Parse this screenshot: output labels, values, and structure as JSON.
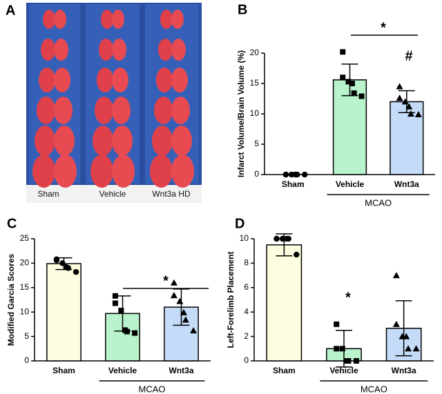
{
  "panel_a": {
    "letter": "A",
    "labels": [
      "Sham",
      "Vehicle",
      "Wnt3a HD"
    ]
  },
  "chart_data": [
    {
      "type": "bar",
      "letter": "B",
      "ylabel": "Infarct Volume/Brain Volume (%)",
      "categories": [
        "Sham",
        "Vehicle",
        "Wnt3a"
      ],
      "values": [
        0,
        15.6,
        12.0
      ],
      "errors": [
        0,
        2.6,
        1.8
      ],
      "points": [
        [
          0,
          0,
          0,
          0,
          0,
          0
        ],
        [
          20.2,
          16.0,
          15.3,
          15.0,
          13.4,
          12.9
        ],
        [
          14.5,
          12.6,
          12.0,
          11.2,
          10.0,
          9.9
        ]
      ],
      "colors": [
        "#fdfde0",
        "#b9f3cc",
        "#c4dcf7"
      ],
      "markers": [
        "circle",
        "square",
        "triangle"
      ],
      "ylim": [
        0,
        20
      ],
      "yticks": [
        0,
        5,
        10,
        15,
        20
      ],
      "annotations": [
        "*",
        "#"
      ],
      "group_label": "MCAO"
    },
    {
      "type": "bar",
      "letter": "C",
      "ylabel": "Modified Garcia Scores",
      "categories": [
        "Sham",
        "Vehicle",
        "Wnt3a"
      ],
      "values": [
        19.9,
        9.7,
        11.0
      ],
      "errors": [
        1.2,
        3.6,
        3.7
      ],
      "points": [
        [
          20.8,
          20.6,
          20.0,
          19.2,
          19.0,
          18.2
        ],
        [
          13.3,
          11.8,
          10.3,
          6.3,
          6.0,
          5.7
        ],
        [
          16.0,
          13.4,
          12.2,
          9.9,
          8.4,
          6.2
        ]
      ],
      "colors": [
        "#fdfde0",
        "#b9f3cc",
        "#c4dcf7"
      ],
      "markers": [
        "circle",
        "square",
        "triangle"
      ],
      "ylim": [
        0,
        25
      ],
      "yticks": [
        0,
        5,
        10,
        15,
        20,
        25
      ],
      "annotations": [
        "*"
      ],
      "group_label": "MCAO"
    },
    {
      "type": "bar",
      "letter": "D",
      "ylabel": "Left-Forelimb Placement",
      "categories": [
        "Sham",
        "Vehicle",
        "Wnt3a"
      ],
      "values": [
        9.5,
        1.0,
        2.67
      ],
      "errors": [
        0.9,
        1.5,
        2.25
      ],
      "points": [
        [
          10,
          10,
          10,
          10,
          10,
          8.7
        ],
        [
          3,
          1,
          1,
          0,
          0,
          0
        ],
        [
          7,
          3,
          2,
          2,
          1,
          1
        ]
      ],
      "colors": [
        "#fdfde0",
        "#b9f3cc",
        "#c4dcf7"
      ],
      "markers": [
        "circle",
        "square",
        "triangle"
      ],
      "ylim": [
        0,
        10
      ],
      "yticks": [
        0,
        2,
        4,
        6,
        8,
        10
      ],
      "annotations": [
        "*"
      ],
      "group_label": "MCAO"
    }
  ]
}
